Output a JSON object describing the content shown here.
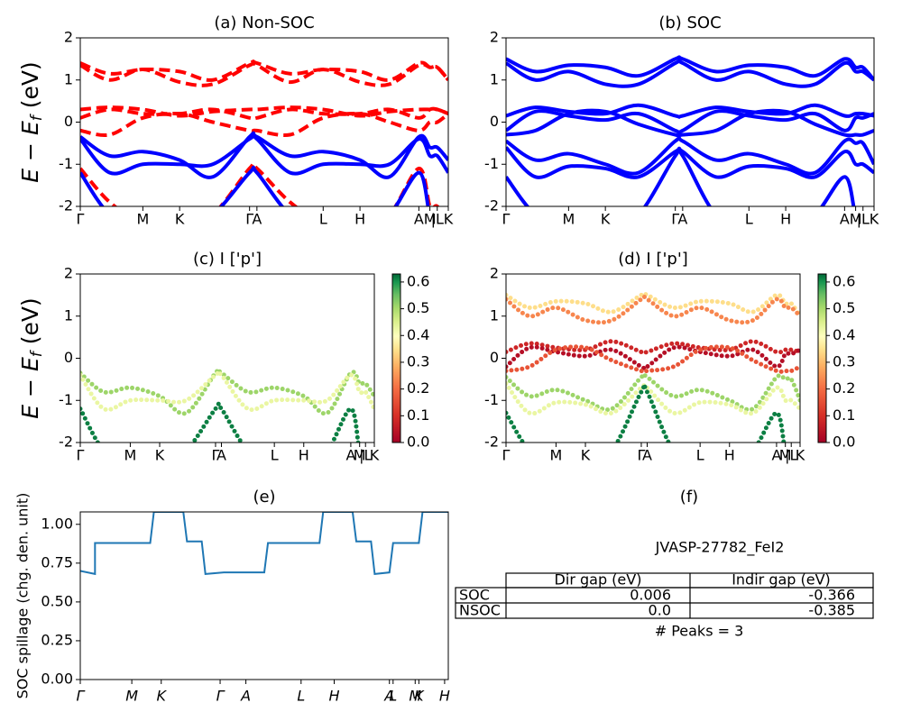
{
  "chart_data": [
    {
      "type": "line",
      "title": "(a) Non-SOC",
      "ylabel": [
        "E − E",
        "f",
        " (eV)"
      ],
      "x": [
        0,
        0.08,
        0.17,
        0.27,
        0.36,
        0.46,
        0.48,
        0.57,
        0.66,
        0.76,
        0.84,
        0.92,
        0.95,
        0.97,
        1.0
      ],
      "xlim": [
        0,
        1
      ],
      "xticks": [
        {
          "value": 0,
          "label": "Γ"
        },
        {
          "value": 0.17,
          "label": "M"
        },
        {
          "value": 0.27,
          "label": "K"
        },
        {
          "value": 0.46,
          "label": "Γ"
        },
        {
          "value": 0.48,
          "label": "A"
        },
        {
          "value": 0.66,
          "label": "L"
        },
        {
          "value": 0.76,
          "label": "H"
        },
        {
          "value": 0.92,
          "label": "A"
        },
        {
          "value": 0.95,
          "label": "M"
        },
        {
          "value": 0.97,
          "label": "|L"
        },
        {
          "value": 1.0,
          "label": "K"
        }
      ],
      "ylim": [
        -2,
        2
      ],
      "yticks": [
        -2,
        -1,
        0,
        1,
        2
      ],
      "series": [
        {
          "color": "#ff0000",
          "dash": true,
          "values": [
            1.4,
            1.15,
            1.25,
            1.2,
            1.0,
            1.4,
            1.4,
            1.15,
            1.25,
            1.2,
            1.0,
            1.4,
            1.3,
            1.3,
            1.0
          ]
        },
        {
          "color": "#ff0000",
          "dash": true,
          "values": [
            1.35,
            1.0,
            1.25,
            0.95,
            0.9,
            1.35,
            1.35,
            0.95,
            1.25,
            0.95,
            0.9,
            1.35,
            1.3,
            1.3,
            1.0
          ]
        },
        {
          "color": "#ff0000",
          "dash": true,
          "values": [
            0.1,
            0.3,
            0.2,
            0.2,
            0.3,
            0.1,
            0.1,
            0.3,
            0.2,
            0.2,
            0.3,
            0.1,
            0.3,
            0.3,
            0.2
          ]
        },
        {
          "color": "#ff0000",
          "dash": true,
          "values": [
            0.3,
            0.35,
            0.3,
            0.15,
            0.25,
            0.3,
            0.3,
            0.35,
            0.3,
            0.15,
            0.25,
            0.3,
            0.3,
            0.3,
            0.2
          ]
        },
        {
          "color": "#ff0000",
          "dash": true,
          "values": [
            -0.2,
            -0.3,
            0.1,
            0.2,
            0.0,
            -0.2,
            -0.2,
            -0.3,
            0.1,
            0.2,
            0.0,
            -0.2,
            0.0,
            0.0,
            0.2
          ]
        },
        {
          "color": "#ff0000",
          "dash": true,
          "values": [
            -1.1,
            -1.9,
            -2.4,
            -2.5,
            -2.2,
            -1.1,
            -1.1,
            -1.9,
            -2.4,
            -2.5,
            -2.2,
            -1.1,
            -2.0,
            -2.0,
            -2.4
          ]
        },
        {
          "color": "#0000ff",
          "dash": false,
          "values": [
            -0.35,
            -0.8,
            -0.7,
            -0.9,
            -1.3,
            -0.35,
            -0.35,
            -0.8,
            -0.7,
            -0.9,
            -1.3,
            -0.35,
            -0.6,
            -0.6,
            -0.9
          ]
        },
        {
          "color": "#0000ff",
          "dash": false,
          "values": [
            -0.4,
            -1.2,
            -1.0,
            -1.0,
            -1.0,
            -0.4,
            -0.4,
            -1.2,
            -1.0,
            -1.0,
            -1.0,
            -0.4,
            -0.8,
            -0.8,
            -1.2
          ]
        },
        {
          "color": "#0000ff",
          "dash": false,
          "values": [
            -1.2,
            -2.2,
            -2.5,
            -2.5,
            -2.2,
            -1.2,
            -1.2,
            -2.2,
            -2.5,
            -2.5,
            -2.2,
            -1.2,
            -2.2,
            -2.2,
            -2.5
          ]
        }
      ]
    },
    {
      "type": "line",
      "title": "(b) SOC",
      "x": [
        0,
        0.08,
        0.17,
        0.27,
        0.36,
        0.46,
        0.48,
        0.57,
        0.66,
        0.76,
        0.84,
        0.92,
        0.95,
        0.97,
        1.0
      ],
      "xlim": [
        0,
        1
      ],
      "xticks": [
        {
          "value": 0,
          "label": "Γ"
        },
        {
          "value": 0.17,
          "label": "M"
        },
        {
          "value": 0.27,
          "label": "K"
        },
        {
          "value": 0.46,
          "label": "Γ"
        },
        {
          "value": 0.48,
          "label": "A"
        },
        {
          "value": 0.66,
          "label": "L"
        },
        {
          "value": 0.76,
          "label": "H"
        },
        {
          "value": 0.92,
          "label": "A"
        },
        {
          "value": 0.95,
          "label": "M"
        },
        {
          "value": 0.97,
          "label": "|L"
        },
        {
          "value": 1.0,
          "label": "K"
        }
      ],
      "ylim": [
        -2,
        2
      ],
      "yticks": [
        -2,
        -1,
        0,
        1,
        2
      ],
      "series": [
        {
          "color": "#0000ff",
          "dash": false,
          "values": [
            1.5,
            1.2,
            1.35,
            1.3,
            1.1,
            1.5,
            1.5,
            1.2,
            1.35,
            1.3,
            1.1,
            1.5,
            1.3,
            1.3,
            1.0
          ]
        },
        {
          "color": "#0000ff",
          "dash": false,
          "values": [
            1.4,
            1.0,
            1.2,
            0.9,
            0.9,
            1.4,
            1.4,
            1.0,
            1.2,
            0.9,
            0.9,
            1.4,
            1.2,
            1.2,
            1.0
          ]
        },
        {
          "color": "#0000ff",
          "dash": false,
          "values": [
            0.15,
            0.35,
            0.25,
            0.2,
            0.4,
            0.15,
            0.15,
            0.35,
            0.25,
            0.2,
            0.4,
            0.15,
            0.2,
            0.2,
            0.15
          ]
        },
        {
          "color": "#0000ff",
          "dash": false,
          "values": [
            -0.2,
            0.25,
            0.15,
            0.05,
            0.2,
            -0.2,
            -0.2,
            0.25,
            0.15,
            0.05,
            0.2,
            -0.2,
            0.1,
            0.1,
            0.2
          ]
        },
        {
          "color": "#0000ff",
          "dash": false,
          "values": [
            -0.3,
            -0.2,
            0.2,
            0.25,
            -0.05,
            -0.3,
            -0.3,
            -0.2,
            0.2,
            0.25,
            -0.05,
            -0.3,
            -0.3,
            -0.3,
            -0.2
          ]
        },
        {
          "color": "#0000ff",
          "dash": false,
          "values": [
            -0.45,
            -0.9,
            -0.75,
            -1.0,
            -1.2,
            -0.45,
            -0.45,
            -0.9,
            -0.75,
            -1.0,
            -1.2,
            -0.45,
            -0.5,
            -0.5,
            -1.0
          ]
        },
        {
          "color": "#0000ff",
          "dash": false,
          "values": [
            -0.6,
            -1.3,
            -1.05,
            -1.1,
            -1.3,
            -0.7,
            -0.7,
            -1.3,
            -1.05,
            -1.1,
            -1.3,
            -0.7,
            -1.0,
            -1.0,
            -1.2
          ]
        },
        {
          "color": "#0000ff",
          "dash": false,
          "values": [
            -1.3,
            -2.2,
            -2.5,
            -2.5,
            -2.2,
            -0.8,
            -0.8,
            -2.2,
            -2.5,
            -2.5,
            -2.2,
            -1.3,
            -2.2,
            -2.2,
            -2.5
          ]
        }
      ]
    },
    {
      "type": "scatter",
      "title": "(c)  I ['p']",
      "ylabel": [
        "E − E",
        "f",
        " (eV)"
      ],
      "colormap": "RdYlGn",
      "colorbar": {
        "lim": [
          0,
          0.63
        ],
        "ticks": [
          {
            "value": 0,
            "label": "0.0"
          },
          {
            "value": 0.1,
            "label": "0.1"
          },
          {
            "value": 0.2,
            "label": "0.2"
          },
          {
            "value": 0.3,
            "label": "0.3"
          },
          {
            "value": 0.4,
            "label": "0.4"
          },
          {
            "value": 0.5,
            "label": "0.5"
          },
          {
            "value": 0.6,
            "label": "0.6"
          }
        ]
      },
      "x": [
        0,
        0.08,
        0.17,
        0.27,
        0.36,
        0.46,
        0.48,
        0.57,
        0.66,
        0.76,
        0.84,
        0.92,
        0.95,
        0.97,
        1.0
      ],
      "xlim": [
        0,
        1
      ],
      "xticks": [
        {
          "value": 0,
          "label": "Γ"
        },
        {
          "value": 0.17,
          "label": "M"
        },
        {
          "value": 0.27,
          "label": "K"
        },
        {
          "value": 0.46,
          "label": "Γ"
        },
        {
          "value": 0.48,
          "label": "A"
        },
        {
          "value": 0.66,
          "label": "L"
        },
        {
          "value": 0.76,
          "label": "H"
        },
        {
          "value": 0.92,
          "label": "A"
        },
        {
          "value": 0.95,
          "label": "M"
        },
        {
          "value": 0.97,
          "label": "|L"
        },
        {
          "value": 1.0,
          "label": "K"
        }
      ],
      "ylim": [
        -2,
        2
      ],
      "yticks": [
        -2,
        -1,
        0,
        1,
        2
      ],
      "series": [
        {
          "weight": 0.45,
          "values": [
            -0.35,
            -0.8,
            -0.7,
            -0.9,
            -1.3,
            -0.35,
            -0.35,
            -0.8,
            -0.7,
            -0.9,
            -1.3,
            -0.35,
            -0.6,
            -0.6,
            -0.9
          ]
        },
        {
          "weight": 0.35,
          "values": [
            -0.4,
            -1.2,
            -1.0,
            -1.0,
            -1.0,
            -0.4,
            -0.4,
            -1.2,
            -1.0,
            -1.0,
            -1.0,
            -0.4,
            -0.8,
            -0.8,
            -1.2
          ]
        },
        {
          "weight": 0.6,
          "values": [
            -1.2,
            -2.2,
            -2.5,
            -2.5,
            -2.2,
            -1.2,
            -1.2,
            -2.2,
            -2.5,
            -2.5,
            -2.2,
            -1.2,
            -2.2,
            -2.2,
            -2.5
          ]
        }
      ]
    },
    {
      "type": "scatter",
      "title": "(d) I ['p']",
      "colormap": "RdYlGn",
      "colorbar": {
        "lim": [
          0,
          0.63
        ],
        "ticks": [
          {
            "value": 0,
            "label": "0.0"
          },
          {
            "value": 0.1,
            "label": "0.1"
          },
          {
            "value": 0.2,
            "label": "0.2"
          },
          {
            "value": 0.3,
            "label": "0.3"
          },
          {
            "value": 0.4,
            "label": "0.4"
          },
          {
            "value": 0.5,
            "label": "0.5"
          },
          {
            "value": 0.6,
            "label": "0.6"
          }
        ]
      },
      "x": [
        0,
        0.08,
        0.17,
        0.27,
        0.36,
        0.46,
        0.48,
        0.57,
        0.66,
        0.76,
        0.84,
        0.92,
        0.95,
        0.97,
        1.0
      ],
      "xlim": [
        0,
        1
      ],
      "xticks": [
        {
          "value": 0,
          "label": "Γ"
        },
        {
          "value": 0.17,
          "label": "M"
        },
        {
          "value": 0.27,
          "label": "K"
        },
        {
          "value": 0.46,
          "label": "Γ"
        },
        {
          "value": 0.48,
          "label": "A"
        },
        {
          "value": 0.66,
          "label": "L"
        },
        {
          "value": 0.76,
          "label": "H"
        },
        {
          "value": 0.92,
          "label": "A"
        },
        {
          "value": 0.95,
          "label": "M"
        },
        {
          "value": 0.97,
          "label": "|L"
        },
        {
          "value": 1.0,
          "label": "K"
        }
      ],
      "ylim": [
        -2,
        2
      ],
      "yticks": [
        -2,
        -1,
        0,
        1,
        2
      ],
      "series": [
        {
          "weight": 0.25,
          "values": [
            1.5,
            1.2,
            1.35,
            1.3,
            1.1,
            1.5,
            1.5,
            1.2,
            1.35,
            1.3,
            1.1,
            1.5,
            1.3,
            1.3,
            1.0
          ]
        },
        {
          "weight": 0.15,
          "values": [
            1.4,
            1.0,
            1.2,
            0.9,
            0.9,
            1.4,
            1.4,
            1.0,
            1.2,
            0.9,
            0.9,
            1.4,
            1.2,
            1.2,
            1.0
          ]
        },
        {
          "weight": 0.05,
          "values": [
            0.15,
            0.35,
            0.25,
            0.2,
            0.4,
            0.15,
            0.15,
            0.35,
            0.25,
            0.2,
            0.4,
            0.15,
            0.2,
            0.2,
            0.15
          ]
        },
        {
          "weight": 0.02,
          "values": [
            -0.2,
            0.25,
            0.15,
            0.05,
            0.2,
            -0.2,
            -0.2,
            0.25,
            0.15,
            0.05,
            0.2,
            -0.2,
            0.1,
            0.1,
            0.2
          ]
        },
        {
          "weight": 0.1,
          "values": [
            -0.3,
            -0.2,
            0.2,
            0.25,
            -0.05,
            -0.3,
            -0.3,
            -0.2,
            0.2,
            0.25,
            -0.05,
            -0.3,
            -0.3,
            -0.3,
            -0.2
          ]
        },
        {
          "weight": 0.45,
          "values": [
            -0.45,
            -0.9,
            -0.75,
            -1.0,
            -1.2,
            -0.45,
            -0.45,
            -0.9,
            -0.75,
            -1.0,
            -1.2,
            -0.45,
            -0.5,
            -0.5,
            -1.0
          ]
        },
        {
          "weight": 0.35,
          "values": [
            -0.6,
            -1.3,
            -1.05,
            -1.1,
            -1.3,
            -0.7,
            -0.7,
            -1.3,
            -1.05,
            -1.1,
            -1.3,
            -0.7,
            -1.0,
            -1.0,
            -1.2
          ]
        },
        {
          "weight": 0.6,
          "values": [
            -1.3,
            -2.2,
            -2.5,
            -2.5,
            -2.2,
            -0.8,
            -0.8,
            -2.2,
            -2.5,
            -2.5,
            -2.2,
            -1.3,
            -2.2,
            -2.2,
            -2.5
          ]
        }
      ]
    },
    {
      "type": "spill",
      "title": "(e)",
      "ylabel": "SOC spillage (chg. den. unit)",
      "color": "#1f77b4",
      "x": [
        0,
        0.04,
        0.04,
        0.19,
        0.2,
        0.28,
        0.29,
        0.33,
        0.34,
        0.39,
        0.5,
        0.51,
        0.65,
        0.66,
        0.74,
        0.75,
        0.79,
        0.8,
        0.84,
        0.85,
        0.92,
        0.93,
        1.0
      ],
      "values": [
        0.7,
        0.68,
        0.88,
        0.88,
        1.08,
        1.08,
        0.89,
        0.89,
        0.68,
        0.69,
        0.69,
        0.88,
        0.88,
        1.08,
        1.08,
        0.89,
        0.89,
        0.68,
        0.69,
        0.88,
        0.88,
        1.08,
        1.08
      ],
      "xlim": [
        0,
        1
      ],
      "xticks": [
        {
          "value": 0,
          "label": "Γ"
        },
        {
          "value": 0.14,
          "label": "M"
        },
        {
          "value": 0.22,
          "label": "K"
        },
        {
          "value": 0.38,
          "label": "Γ"
        },
        {
          "value": 0.45,
          "label": "A"
        },
        {
          "value": 0.6,
          "label": "L"
        },
        {
          "value": 0.69,
          "label": "H"
        },
        {
          "value": 0.84,
          "label": "A"
        },
        {
          "value": 0.85,
          "label": "L"
        },
        {
          "value": 0.91,
          "label": "M"
        },
        {
          "value": 0.92,
          "label": "K"
        },
        {
          "value": 0.99,
          "label": "H"
        }
      ],
      "ylim": [
        0,
        1.08
      ],
      "yticks": [
        {
          "value": 0,
          "label": "0.00"
        },
        {
          "value": 0.25,
          "label": "0.25"
        },
        {
          "value": 0.5,
          "label": "0.50"
        },
        {
          "value": 0.75,
          "label": "0.75"
        },
        {
          "value": 1.0,
          "label": "1.00"
        }
      ]
    }
  ],
  "panel_f": {
    "title": "(f)",
    "label": "JVASP-27782_FeI2",
    "table": {
      "header": [
        "Dir gap (eV)",
        "Indir gap (eV)"
      ],
      "rows": [
        [
          "SOC",
          "0.006",
          "-0.366"
        ],
        [
          "NSOC",
          "0.0",
          "-0.385"
        ]
      ]
    },
    "note": "# Peaks = 3"
  }
}
